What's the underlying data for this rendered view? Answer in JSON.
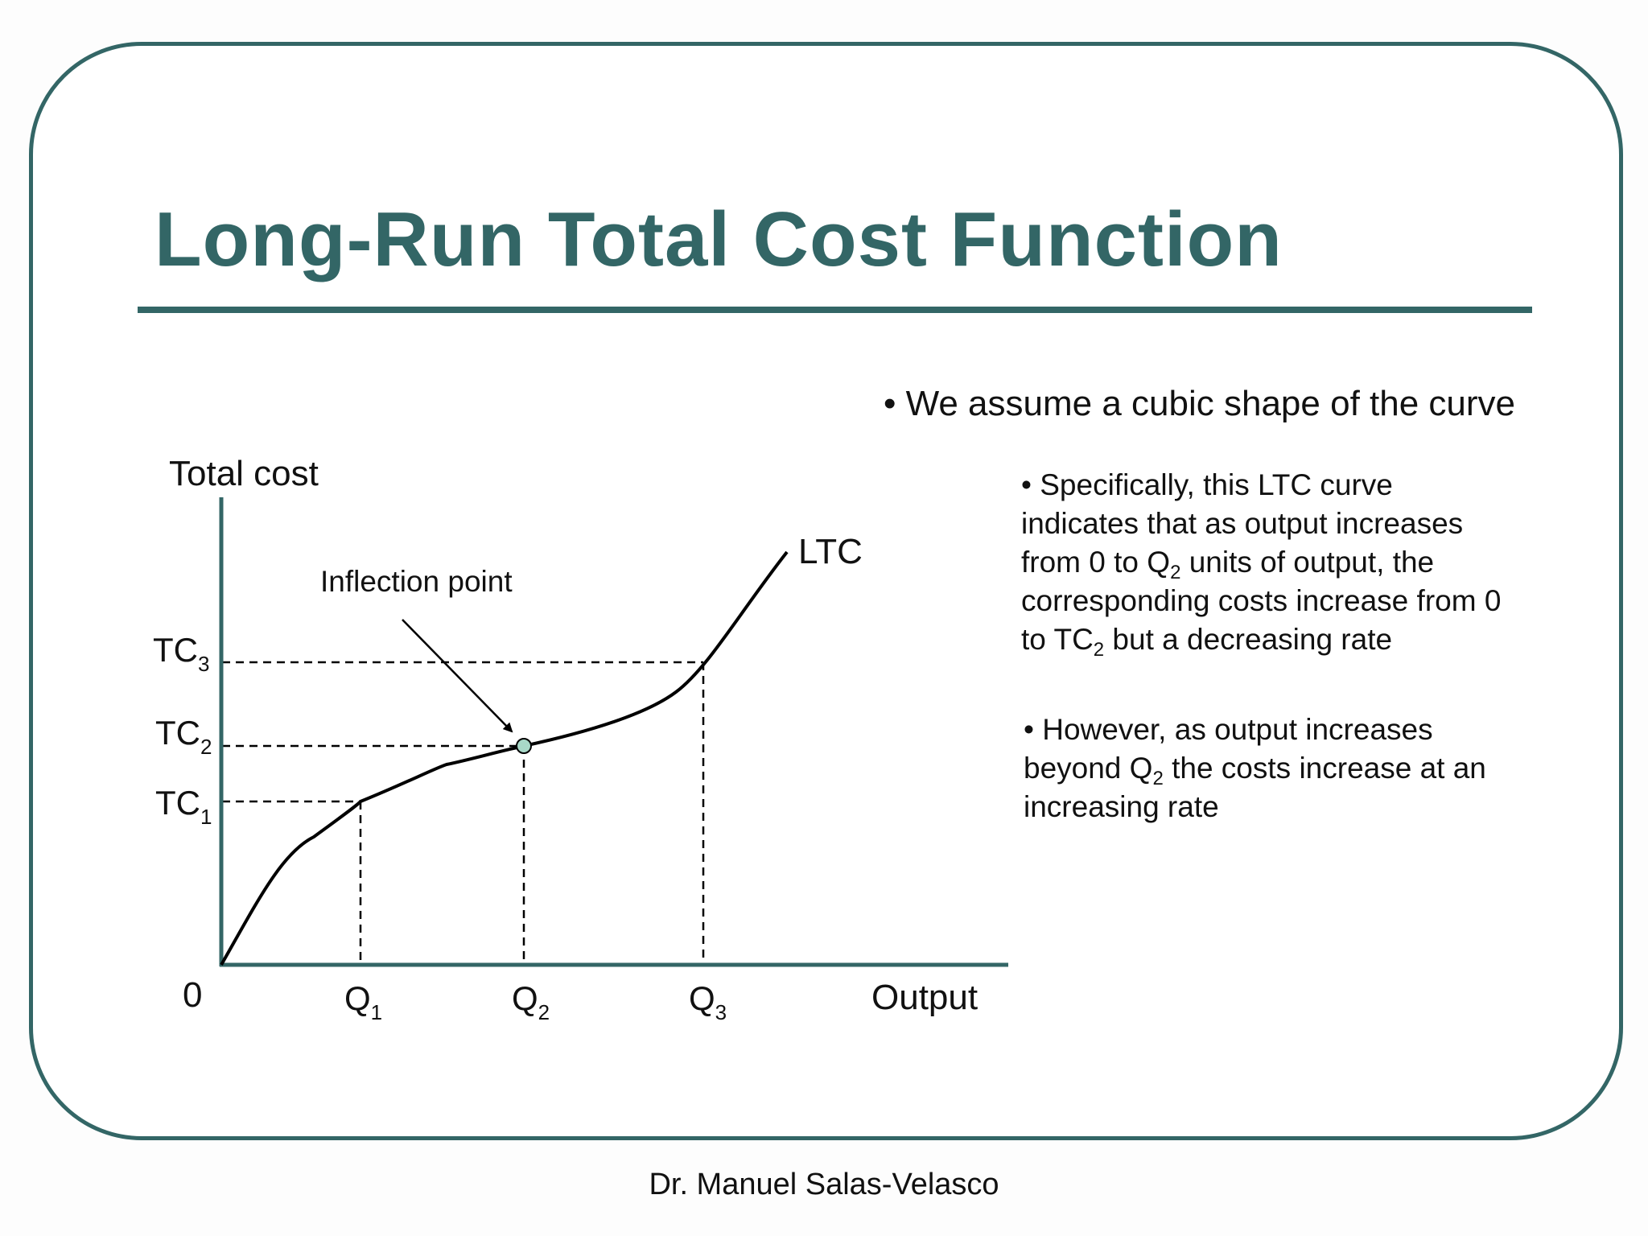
{
  "slide": {
    "title": "Long-Run Total Cost Function",
    "bullet_main": "• We assume a cubic shape of the curve",
    "bullet_1": {
      "parts": [
        "• Specifically, this LTC curve",
        "indicates that as output increases",
        "from 0 to Q",
        "2",
        " units of output, the",
        "corresponding costs increase from 0",
        "to TC",
        "2",
        " but a decreasing rate"
      ]
    },
    "bullet_2": {
      "parts": [
        "• However, as output increases",
        "beyond Q",
        "2",
        " the costs increase at an",
        "increasing rate"
      ]
    },
    "footer": "Dr. Manuel Salas-Velasco"
  },
  "diagram": {
    "y_axis_label": "Total cost",
    "x_axis_label": "Output",
    "origin_label": "0",
    "curve_label": "LTC",
    "annotation": "Inflection point",
    "x_ticks": [
      {
        "base": "Q",
        "sub": "1"
      },
      {
        "base": "Q",
        "sub": "2"
      },
      {
        "base": "Q",
        "sub": "3"
      }
    ],
    "y_ticks": [
      {
        "base": "TC",
        "sub": "1"
      },
      {
        "base": "TC",
        "sub": "2"
      },
      {
        "base": "TC",
        "sub": "3"
      }
    ],
    "colors": {
      "accent": "#336666",
      "curve": "#000000",
      "inflection_marker": "#a8d8c8"
    }
  }
}
